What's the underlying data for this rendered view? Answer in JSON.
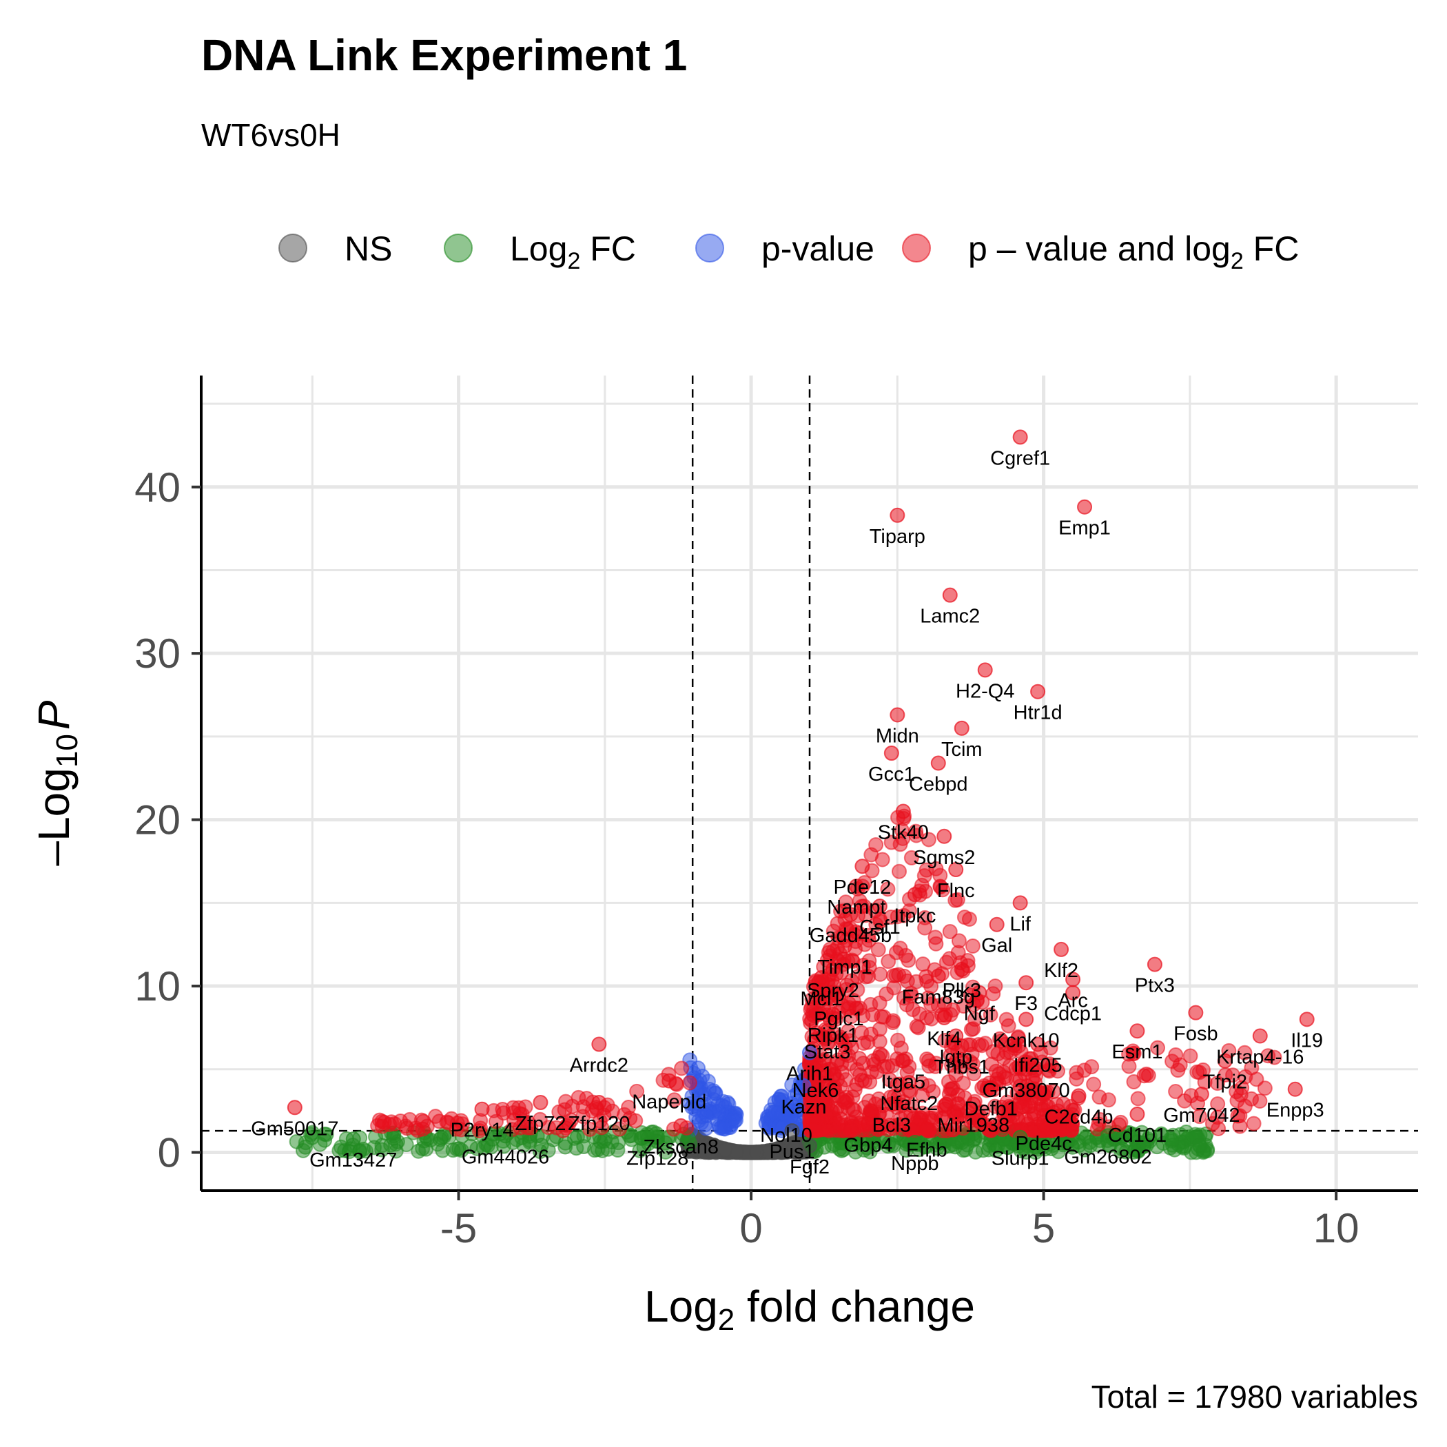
{
  "chart_data": {
    "type": "scatter",
    "title": "DNA Link Experiment 1",
    "subtitle": "WT6vs0H",
    "xlabel": "Log2 fold change",
    "xlabel_parts": {
      "pre": "Log",
      "sub": "2",
      "post": " fold change"
    },
    "ylabel_parts": {
      "pre": "–Log",
      "sub": "10",
      "post": "P"
    },
    "caption": "Total = 17980 variables",
    "xlim": [
      -9.4,
      11.4
    ],
    "ylim": [
      -2.3,
      46.7
    ],
    "x_ticks": [
      -5,
      0,
      5,
      10
    ],
    "x_tick_labels": [
      "-5",
      "0",
      "5",
      "10"
    ],
    "y_ticks": [
      0,
      10,
      20,
      30,
      40
    ],
    "y_tick_labels": [
      "0",
      "10",
      "20",
      "30",
      "40"
    ],
    "cutoffs": {
      "fc": [
        -1,
        1
      ],
      "p": 1.3
    },
    "grid": true,
    "legend_position": "top",
    "legend": [
      {
        "key": "ns",
        "parts": {
          "pre": "NS",
          "sub": "",
          "post": ""
        },
        "color": "#4d4d4d"
      },
      {
        "key": "fc",
        "parts": {
          "pre": "Log",
          "sub": "2",
          "post": " FC"
        },
        "color": "#228b22"
      },
      {
        "key": "p",
        "parts": {
          "pre": "p-value",
          "sub": "",
          "post": ""
        },
        "color": "#3055e6"
      },
      {
        "key": "both",
        "parts": {
          "pre": "p – value and log",
          "sub": "2",
          "post": " FC"
        },
        "color": "#e8101d"
      }
    ],
    "colors": {
      "ns": "#4d4d4d",
      "fc": "#228b22",
      "p": "#3055e6",
      "both": "#e8101d"
    },
    "labeled_points": [
      {
        "label": "Cgref1",
        "x": 4.6,
        "y": 43.0
      },
      {
        "label": "Emp1",
        "x": 5.7,
        "y": 38.8
      },
      {
        "label": "Tiparp",
        "x": 2.5,
        "y": 38.3
      },
      {
        "label": "Lamc2",
        "x": 3.4,
        "y": 33.5
      },
      {
        "label": "H2-Q4",
        "x": 4.0,
        "y": 29.0
      },
      {
        "label": "Htr1d",
        "x": 4.9,
        "y": 27.7
      },
      {
        "label": "Midn",
        "x": 2.5,
        "y": 26.3
      },
      {
        "label": "Tcim",
        "x": 3.6,
        "y": 25.5
      },
      {
        "label": "Gcc1",
        "x": 2.4,
        "y": 24.0
      },
      {
        "label": "Cebpd",
        "x": 3.2,
        "y": 23.4
      },
      {
        "label": "Stk40",
        "x": 2.6,
        "y": 20.5
      },
      {
        "label": "Sgms2",
        "x": 3.3,
        "y": 19.0
      },
      {
        "label": "Pde12",
        "x": 1.9,
        "y": 17.2
      },
      {
        "label": "Flnc",
        "x": 3.5,
        "y": 17.0
      },
      {
        "label": "Nampt",
        "x": 1.8,
        "y": 16.0
      },
      {
        "label": "Itpkc",
        "x": 2.8,
        "y": 15.5
      },
      {
        "label": "Csf1",
        "x": 2.2,
        "y": 14.8
      },
      {
        "label": "Lif",
        "x": 4.6,
        "y": 15.0
      },
      {
        "label": "Gadd45b",
        "x": 1.7,
        "y": 14.3
      },
      {
        "label": "Gal",
        "x": 4.2,
        "y": 13.7
      },
      {
        "label": "Timp1",
        "x": 1.6,
        "y": 12.4
      },
      {
        "label": "Klf2",
        "x": 5.3,
        "y": 12.2
      },
      {
        "label": "Plk3",
        "x": 3.6,
        "y": 11.0
      },
      {
        "label": "Spry2",
        "x": 1.4,
        "y": 11.0
      },
      {
        "label": "Arc",
        "x": 5.5,
        "y": 10.4
      },
      {
        "label": "F3",
        "x": 4.7,
        "y": 10.2
      },
      {
        "label": "Mcl1",
        "x": 1.2,
        "y": 10.5
      },
      {
        "label": "Ptx3",
        "x": 6.9,
        "y": 11.3
      },
      {
        "label": "Fam83g",
        "x": 3.2,
        "y": 10.6
      },
      {
        "label": "Ngf",
        "x": 3.9,
        "y": 9.6
      },
      {
        "label": "Cdcp1",
        "x": 5.5,
        "y": 9.6
      },
      {
        "label": "Pglc1",
        "x": 1.5,
        "y": 9.3
      },
      {
        "label": "Ripk1",
        "x": 1.4,
        "y": 8.3
      },
      {
        "label": "Klf4",
        "x": 3.3,
        "y": 8.1
      },
      {
        "label": "Kcnk10",
        "x": 4.7,
        "y": 8.0
      },
      {
        "label": "Fosb",
        "x": 7.6,
        "y": 8.4
      },
      {
        "label": "Stat3",
        "x": 1.3,
        "y": 7.3
      },
      {
        "label": "Igtp",
        "x": 3.5,
        "y": 7.0
      },
      {
        "label": "Il19",
        "x": 9.5,
        "y": 8.0
      },
      {
        "label": "Ifi205",
        "x": 4.9,
        "y": 6.5
      },
      {
        "label": "Esm1",
        "x": 6.6,
        "y": 7.3
      },
      {
        "label": "Thbs1",
        "x": 3.6,
        "y": 6.4
      },
      {
        "label": "Krtap4-16",
        "x": 8.7,
        "y": 7.0
      },
      {
        "label": "Arih1",
        "x": 1.0,
        "y": 6.0
      },
      {
        "label": "Arrdc2",
        "x": -2.6,
        "y": 6.5
      },
      {
        "label": "Itga5",
        "x": 2.6,
        "y": 5.5
      },
      {
        "label": "Gm38070",
        "x": 4.7,
        "y": 5.0
      },
      {
        "label": "Tfpi2",
        "x": 8.1,
        "y": 5.5
      },
      {
        "label": "Nek6",
        "x": 1.1,
        "y": 5.0
      },
      {
        "label": "Napepld",
        "x": -1.4,
        "y": 4.3
      },
      {
        "label": "Nfatc2",
        "x": 2.7,
        "y": 4.2
      },
      {
        "label": "Kazn",
        "x": 0.9,
        "y": 4.0
      },
      {
        "label": "C2cd4b",
        "x": 5.6,
        "y": 3.4
      },
      {
        "label": "Gm7042",
        "x": 7.7,
        "y": 3.5
      },
      {
        "label": "Defb1",
        "x": 4.1,
        "y": 3.9
      },
      {
        "label": "Enpp3",
        "x": 9.3,
        "y": 3.8
      },
      {
        "label": "Zfp72",
        "x": -3.6,
        "y": 3.0
      },
      {
        "label": "Zfp120",
        "x": -2.6,
        "y": 3.0
      },
      {
        "label": "Bcl3",
        "x": 2.4,
        "y": 2.9
      },
      {
        "label": "Mir1938",
        "x": 3.8,
        "y": 2.9
      },
      {
        "label": "Nol10",
        "x": 0.6,
        "y": 2.3
      },
      {
        "label": "Cd101",
        "x": 6.6,
        "y": 2.3
      },
      {
        "label": "Gm50017",
        "x": -7.8,
        "y": 2.7
      },
      {
        "label": "P2ry14",
        "x": -4.6,
        "y": 2.6
      },
      {
        "label": "Zkscan8",
        "x": -1.2,
        "y": 1.6
      },
      {
        "label": "Pde4c",
        "x": 5.0,
        "y": 1.8
      },
      {
        "label": "Gbp4",
        "x": 2.0,
        "y": 1.7
      },
      {
        "label": "Efhb",
        "x": 3.0,
        "y": 1.4
      },
      {
        "label": "Pus1",
        "x": 0.7,
        "y": 1.3
      },
      {
        "label": "Gm44026",
        "x": -4.2,
        "y": 1.0
      },
      {
        "label": "Gm13427",
        "x": -6.8,
        "y": 0.8
      },
      {
        "label": "Zfp128",
        "x": -1.6,
        "y": 0.9
      },
      {
        "label": "Slurp1",
        "x": 4.6,
        "y": 0.9
      },
      {
        "label": "Gm26802",
        "x": 6.1,
        "y": 1.0
      },
      {
        "label": "Nppb",
        "x": 2.8,
        "y": 0.6
      },
      {
        "label": "Fgf2",
        "x": 1.0,
        "y": 0.4
      }
    ]
  }
}
